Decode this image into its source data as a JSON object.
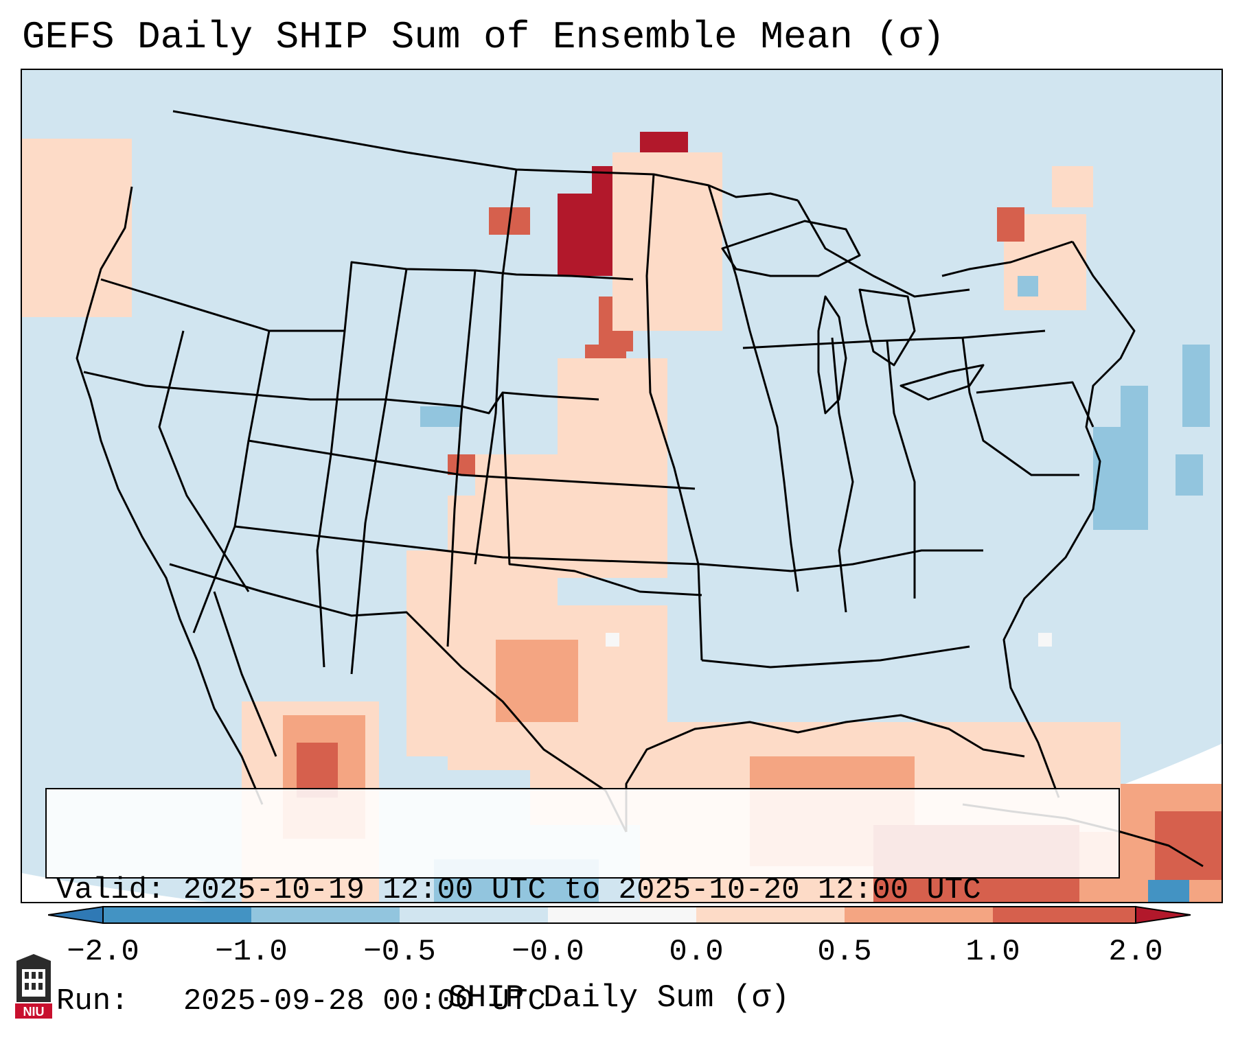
{
  "title": "GEFS Daily SHIP Sum of Ensemble Mean (σ)",
  "info": {
    "valid_line": "Valid: 2025-10-19 12:00 UTC to 2025-10-20 12:00 UTC",
    "run_line": "Run:   2025-09-28 00:00 UTC"
  },
  "colorbar": {
    "label": "SHIP Daily Sum (σ)",
    "tick_labels": [
      "−2.0",
      "−1.0",
      "−0.5",
      "−0.0",
      "0.0",
      "0.5",
      "1.0",
      "2.0"
    ],
    "colors": {
      "below_min": "#2f79b5",
      "neg_2_to_1": "#4393c3",
      "neg_1_to_05": "#92c5de",
      "neg_05_to_0": "#d1e5f0",
      "zero_band": "#f7f7f7",
      "pos_0_to_05": "#fddbc7",
      "pos_05_to_1": "#f4a582",
      "pos_1_to_2": "#d6604d",
      "above_max": "#b2182b"
    }
  },
  "logo": {
    "text": "NIU",
    "icon": "university-seal-icon"
  }
}
